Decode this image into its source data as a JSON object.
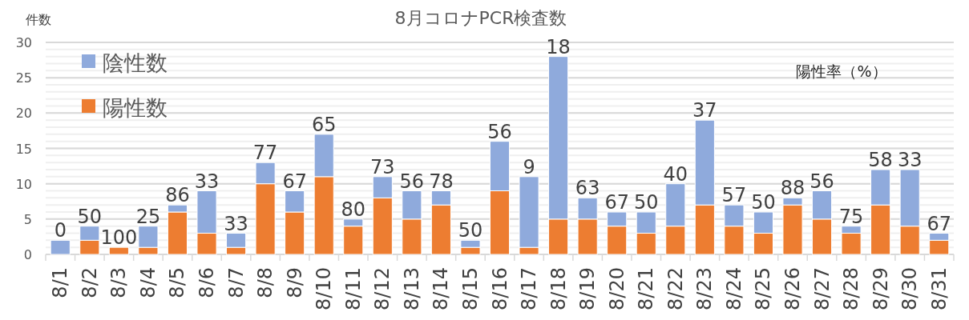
{
  "chart_data": {
    "type": "bar",
    "title": "8月コロナPCR検査数",
    "ylabel": "件数",
    "stacked": true,
    "categories": [
      "8/1",
      "8/2",
      "8/3",
      "8/4",
      "8/5",
      "8/6",
      "8/7",
      "8/8",
      "8/9",
      "8/10",
      "8/11",
      "8/12",
      "8/13",
      "8/14",
      "8/15",
      "8/16",
      "8/17",
      "8/18",
      "8/19",
      "8/20",
      "8/21",
      "8/22",
      "8/23",
      "8/24",
      "8/25",
      "8/26",
      "8/27",
      "8/28",
      "8/29",
      "8/30",
      "8/31"
    ],
    "series": [
      {
        "name": "陽性数",
        "color": "#ed7d31",
        "values": [
          0,
          2,
          1,
          1,
          6,
          3,
          1,
          10,
          6,
          11,
          4,
          8,
          5,
          7,
          1,
          9,
          1,
          5,
          5,
          4,
          3,
          4,
          7,
          4,
          3,
          7,
          5,
          3,
          7,
          4,
          2
        ]
      },
      {
        "name": "陰性数",
        "color": "#8faadc",
        "values": [
          2,
          2,
          0,
          3,
          1,
          6,
          2,
          3,
          3,
          6,
          1,
          3,
          4,
          2,
          1,
          7,
          10,
          23,
          3,
          2,
          3,
          6,
          12,
          3,
          3,
          1,
          4,
          1,
          5,
          8,
          1
        ]
      }
    ],
    "annotations": [
      "陽性率（%）",
      {
        "text": "0",
        "x": "8/1",
        "y": 2
      },
      {
        "text": "50",
        "x": "8/2",
        "y": 4
      },
      {
        "text": "100",
        "x": "8/3",
        "y": 1
      },
      {
        "text": "25",
        "x": "8/4",
        "y": 4
      },
      {
        "text": "86",
        "x": "8/5",
        "y": 7
      },
      {
        "text": "33",
        "x": "8/6",
        "y": 9
      },
      {
        "text": "33",
        "x": "8/7",
        "y": 3
      },
      {
        "text": "77",
        "x": "8/8",
        "y": 13
      },
      {
        "text": "67",
        "x": "8/9",
        "y": 9
      },
      {
        "text": "65",
        "x": "8/10",
        "y": 17
      },
      {
        "text": "80",
        "x": "8/11",
        "y": 5
      },
      {
        "text": "73",
        "x": "8/12",
        "y": 11
      },
      {
        "text": "56",
        "x": "8/13",
        "y": 9
      },
      {
        "text": "78",
        "x": "8/14",
        "y": 9
      },
      {
        "text": "50",
        "x": "8/15",
        "y": 2
      },
      {
        "text": "56",
        "x": "8/16",
        "y": 16
      },
      {
        "text": "9",
        "x": "8/17",
        "y": 11
      },
      {
        "text": "18",
        "x": "8/18",
        "y": 28
      },
      {
        "text": "63",
        "x": "8/19",
        "y": 8
      },
      {
        "text": "67",
        "x": "8/20",
        "y": 6
      },
      {
        "text": "50",
        "x": "8/21",
        "y": 6
      },
      {
        "text": "40",
        "x": "8/22",
        "y": 10
      },
      {
        "text": "37",
        "x": "8/23",
        "y": 19
      },
      {
        "text": "57",
        "x": "8/24",
        "y": 7
      },
      {
        "text": "50",
        "x": "8/25",
        "y": 6
      },
      {
        "text": "88",
        "x": "8/26",
        "y": 8
      },
      {
        "text": "56",
        "x": "8/27",
        "y": 9
      },
      {
        "text": "75",
        "x": "8/28",
        "y": 4
      },
      {
        "text": "58",
        "x": "8/29",
        "y": 12
      },
      {
        "text": "33",
        "x": "8/30",
        "y": 12
      },
      {
        "text": "67",
        "x": "8/31",
        "y": 3
      }
    ],
    "ylim": [
      0,
      30
    ],
    "yticks": [
      0,
      5,
      10,
      15,
      20,
      25,
      30
    ],
    "grid": "y",
    "legend": "top left"
  }
}
